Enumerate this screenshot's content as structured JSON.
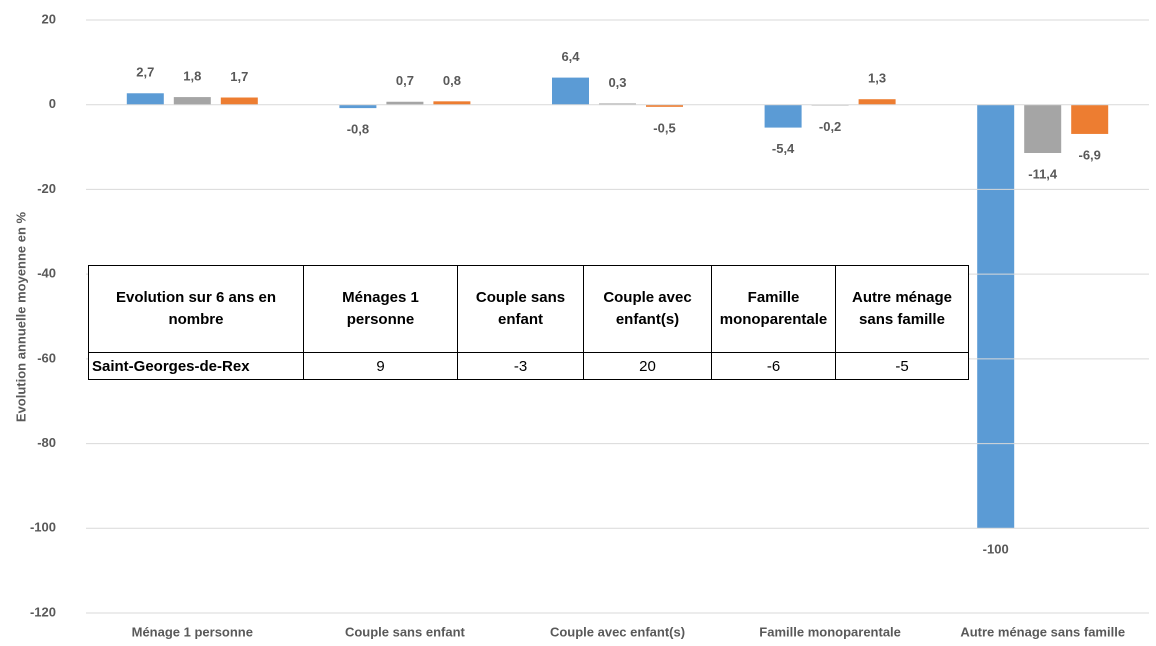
{
  "chart_data": {
    "type": "bar",
    "y_label": "Evolution annuelle moyenne en %",
    "categories": [
      "Ménage 1 personne",
      "Couple sans enfant",
      "Couple avec enfant(s)",
      "Famille monoparentale",
      "Autre ménage sans famille"
    ],
    "series": [
      {
        "color": "#5b9bd5",
        "values": [
          2.7,
          -0.8,
          6.4,
          -5.4,
          -100
        ],
        "value_labels": [
          "2,7",
          "-0,8",
          "6,4",
          "-5,4",
          "-100"
        ]
      },
      {
        "color": "#a5a5a5",
        "values": [
          1.8,
          0.7,
          0.3,
          -0.2,
          -11.4
        ],
        "value_labels": [
          "1,8",
          "0,7",
          "0,3",
          "-0,2",
          "-11,4"
        ]
      },
      {
        "color": "#ed7d31",
        "values": [
          1.7,
          0.8,
          -0.5,
          1.3,
          -6.9
        ],
        "value_labels": [
          "1,7",
          "0,8",
          "-0,5",
          "1,3",
          "-6,9"
        ]
      }
    ],
    "ylim": [
      -120,
      20
    ],
    "yticks": [
      -120,
      -100,
      -80,
      -60,
      -40,
      -20,
      0,
      20
    ],
    "grid": true
  },
  "table": {
    "header": [
      "Evolution sur 6 ans en nombre",
      "Ménages 1 personne",
      "Couple sans enfant",
      "Couple avec enfant(s)",
      "Famille monoparentale",
      "Autre ménage sans famille"
    ],
    "rows": [
      [
        "Saint-Georges-de-Rex",
        9,
        -3,
        20,
        -6,
        -5
      ]
    ]
  }
}
